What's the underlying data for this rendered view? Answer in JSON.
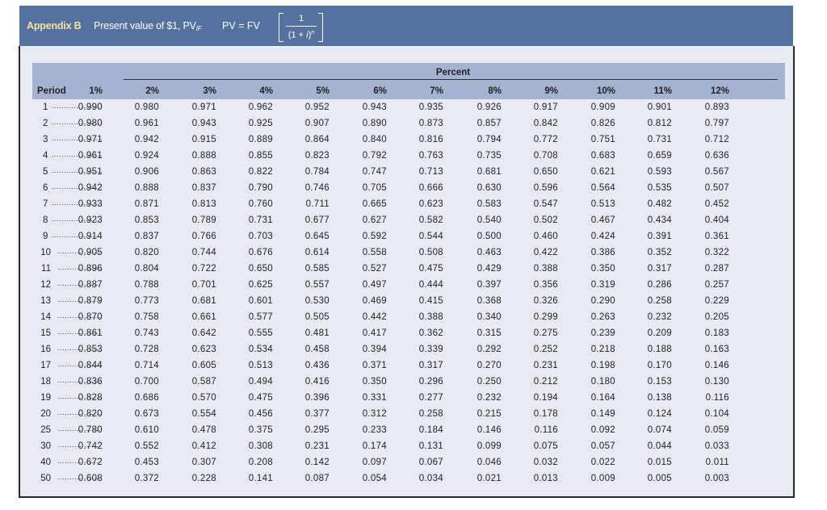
{
  "header": {
    "appendix_label": "Appendix B",
    "subtitle": "Present value of $1, PV",
    "subtitle_subscript": "IF",
    "formula": {
      "lhs": "PV = FV",
      "numerator": "1",
      "denominator_base": "(1 + ",
      "denominator_var": "i",
      "denominator_close": ")",
      "denominator_exp": "n"
    }
  },
  "table": {
    "group_label": "Percent",
    "period_label": "Period",
    "columns": [
      "1%",
      "2%",
      "3%",
      "4%",
      "5%",
      "6%",
      "7%",
      "8%",
      "9%",
      "10%",
      "11%",
      "12%"
    ],
    "dots": "........................................",
    "rows": [
      {
        "period": "1",
        "values": [
          "0.990",
          "0.980",
          "0.971",
          "0.962",
          "0.952",
          "0.943",
          "0.935",
          "0.926",
          "0.917",
          "0.909",
          "0.901",
          "0.893"
        ]
      },
      {
        "period": "2",
        "values": [
          "0.980",
          "0.961",
          "0.943",
          "0.925",
          "0.907",
          "0.890",
          "0.873",
          "0.857",
          "0.842",
          "0.826",
          "0.812",
          "0.797"
        ]
      },
      {
        "period": "3",
        "values": [
          "0.971",
          "0.942",
          "0.915",
          "0.889",
          "0.864",
          "0.840",
          "0.816",
          "0.794",
          "0.772",
          "0.751",
          "0.731",
          "0.712"
        ]
      },
      {
        "period": "4",
        "values": [
          "0.961",
          "0.924",
          "0.888",
          "0.855",
          "0.823",
          "0.792",
          "0.763",
          "0.735",
          "0.708",
          "0.683",
          "0.659",
          "0.636"
        ]
      },
      {
        "period": "5",
        "values": [
          "0.951",
          "0.906",
          "0.863",
          "0.822",
          "0.784",
          "0.747",
          "0.713",
          "0.681",
          "0.650",
          "0.621",
          "0.593",
          "0.567"
        ]
      },
      {
        "period": "6",
        "values": [
          "0.942",
          "0.888",
          "0.837",
          "0.790",
          "0.746",
          "0.705",
          "0.666",
          "0.630",
          "0.596",
          "0.564",
          "0.535",
          "0.507"
        ]
      },
      {
        "period": "7",
        "values": [
          "0.933",
          "0.871",
          "0.813",
          "0.760",
          "0.711",
          "0.665",
          "0.623",
          "0.583",
          "0.547",
          "0.513",
          "0.482",
          "0.452"
        ]
      },
      {
        "period": "8",
        "values": [
          "0.923",
          "0.853",
          "0.789",
          "0.731",
          "0.677",
          "0.627",
          "0.582",
          "0.540",
          "0.502",
          "0.467",
          "0.434",
          "0.404"
        ]
      },
      {
        "period": "9",
        "values": [
          "0.914",
          "0.837",
          "0.766",
          "0.703",
          "0.645",
          "0.592",
          "0.544",
          "0.500",
          "0.460",
          "0.424",
          "0.391",
          "0.361"
        ]
      },
      {
        "period": "10",
        "values": [
          "0.905",
          "0.820",
          "0.744",
          "0.676",
          "0.614",
          "0.558",
          "0.508",
          "0.463",
          "0.422",
          "0.386",
          "0.352",
          "0.322"
        ]
      },
      {
        "period": "11",
        "values": [
          "0.896",
          "0.804",
          "0.722",
          "0.650",
          "0.585",
          "0.527",
          "0.475",
          "0.429",
          "0.388",
          "0.350",
          "0.317",
          "0.287"
        ]
      },
      {
        "period": "12",
        "values": [
          "0.887",
          "0.788",
          "0.701",
          "0.625",
          "0.557",
          "0.497",
          "0.444",
          "0.397",
          "0.356",
          "0.319",
          "0.286",
          "0.257"
        ]
      },
      {
        "period": "13",
        "values": [
          "0.879",
          "0.773",
          "0.681",
          "0.601",
          "0.530",
          "0.469",
          "0.415",
          "0.368",
          "0.326",
          "0.290",
          "0.258",
          "0.229"
        ]
      },
      {
        "period": "14",
        "values": [
          "0.870",
          "0.758",
          "0.661",
          "0.577",
          "0.505",
          "0.442",
          "0.388",
          "0.340",
          "0.299",
          "0.263",
          "0.232",
          "0.205"
        ]
      },
      {
        "period": "15",
        "values": [
          "0.861",
          "0.743",
          "0.642",
          "0.555",
          "0.481",
          "0.417",
          "0.362",
          "0.315",
          "0.275",
          "0.239",
          "0.209",
          "0.183"
        ]
      },
      {
        "period": "16",
        "values": [
          "0.853",
          "0.728",
          "0.623",
          "0.534",
          "0.458",
          "0.394",
          "0.339",
          "0.292",
          "0.252",
          "0.218",
          "0.188",
          "0.163"
        ]
      },
      {
        "period": "17",
        "values": [
          "0.844",
          "0.714",
          "0.605",
          "0.513",
          "0.436",
          "0.371",
          "0.317",
          "0.270",
          "0.231",
          "0.198",
          "0.170",
          "0.146"
        ]
      },
      {
        "period": "18",
        "values": [
          "0.836",
          "0.700",
          "0.587",
          "0.494",
          "0.416",
          "0.350",
          "0.296",
          "0.250",
          "0.212",
          "0.180",
          "0.153",
          "0.130"
        ]
      },
      {
        "period": "19",
        "values": [
          "0.828",
          "0.686",
          "0.570",
          "0.475",
          "0.396",
          "0.331",
          "0.277",
          "0.232",
          "0.194",
          "0.164",
          "0.138",
          "0.116"
        ]
      },
      {
        "period": "20",
        "values": [
          "0.820",
          "0.673",
          "0.554",
          "0.456",
          "0.377",
          "0.312",
          "0.258",
          "0.215",
          "0.178",
          "0.149",
          "0.124",
          "0.104"
        ]
      },
      {
        "period": "25",
        "values": [
          "0.780",
          "0.610",
          "0.478",
          "0.375",
          "0.295",
          "0.233",
          "0.184",
          "0.146",
          "0.116",
          "0.092",
          "0.074",
          "0.059"
        ]
      },
      {
        "period": "30",
        "values": [
          "0.742",
          "0.552",
          "0.412",
          "0.308",
          "0.231",
          "0.174",
          "0.131",
          "0.099",
          "0.075",
          "0.057",
          "0.044",
          "0.033"
        ]
      },
      {
        "period": "40",
        "values": [
          "0.672",
          "0.453",
          "0.307",
          "0.208",
          "0.142",
          "0.097",
          "0.067",
          "0.046",
          "0.032",
          "0.022",
          "0.015",
          "0.011"
        ]
      },
      {
        "period": "50",
        "values": [
          "0.608",
          "0.372",
          "0.228",
          "0.141",
          "0.087",
          "0.054",
          "0.034",
          "0.021",
          "0.013",
          "0.009",
          "0.005",
          "0.003"
        ]
      }
    ]
  },
  "colors": {
    "title_bar": "#5571a0",
    "appendix_accent": "#f3e3a0",
    "header_band": "#a4b3d1",
    "panel_bg": "#e8ebf3"
  }
}
